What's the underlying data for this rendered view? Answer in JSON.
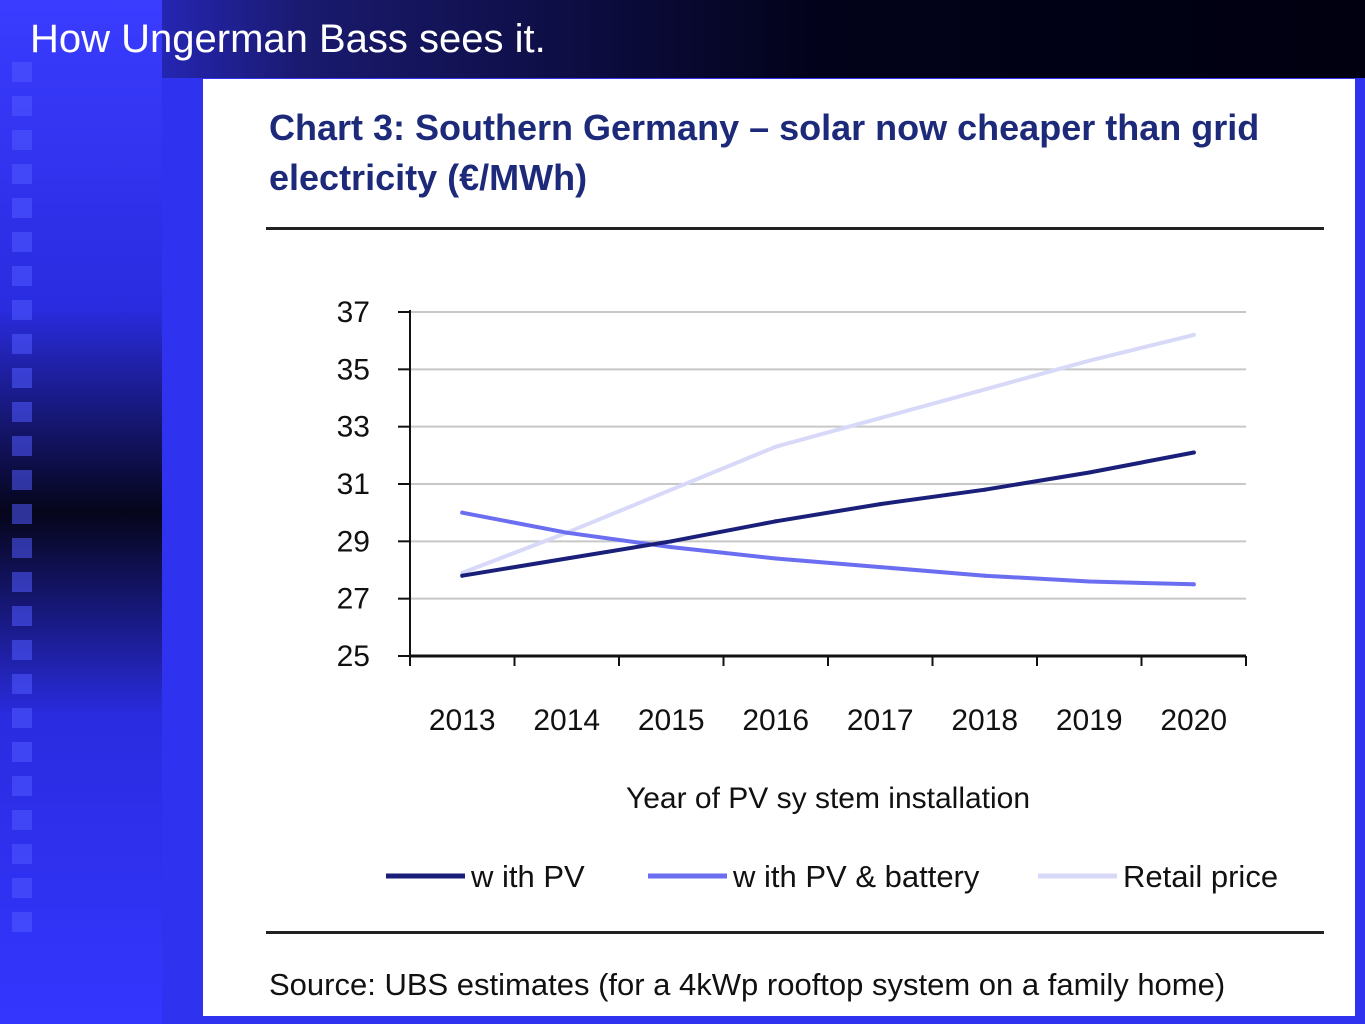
{
  "slide": {
    "title": "How Ungerman Bass sees it."
  },
  "colors": {
    "with_pv": "#1a1f7a",
    "with_pv_battery": "#6b6ef0",
    "retail_price": "#d8d9f8",
    "title": "#1d2a7a"
  },
  "chart_data": {
    "type": "line",
    "title": "Chart 3: Southern Germany – solar now cheaper than grid electricity (€/MWh)",
    "xlabel": "Year of PV sy stem installation",
    "ylabel": "",
    "x": [
      "2013",
      "2014",
      "2015",
      "2016",
      "2017",
      "2018",
      "2019",
      "2020"
    ],
    "ylim": [
      25,
      37
    ],
    "yticks": [
      "25",
      "27",
      "29",
      "31",
      "33",
      "35",
      "37"
    ],
    "grid": true,
    "legend_position": "bottom",
    "series": [
      {
        "name": "w ith PV",
        "color": "#1a1f7a",
        "values": [
          27.8,
          28.4,
          29.0,
          29.7,
          30.3,
          30.8,
          31.4,
          32.1
        ]
      },
      {
        "name": "w ith PV & battery",
        "color": "#6b6ef0",
        "values": [
          30.0,
          29.3,
          28.8,
          28.4,
          28.1,
          27.8,
          27.6,
          27.5
        ]
      },
      {
        "name": "Retail price",
        "color": "#d8d9f8",
        "values": [
          27.9,
          29.3,
          30.8,
          32.3,
          33.3,
          34.3,
          35.3,
          36.2
        ]
      }
    ],
    "source": "Source: UBS estimates (for a 4kWp rooftop system on a family home)"
  }
}
